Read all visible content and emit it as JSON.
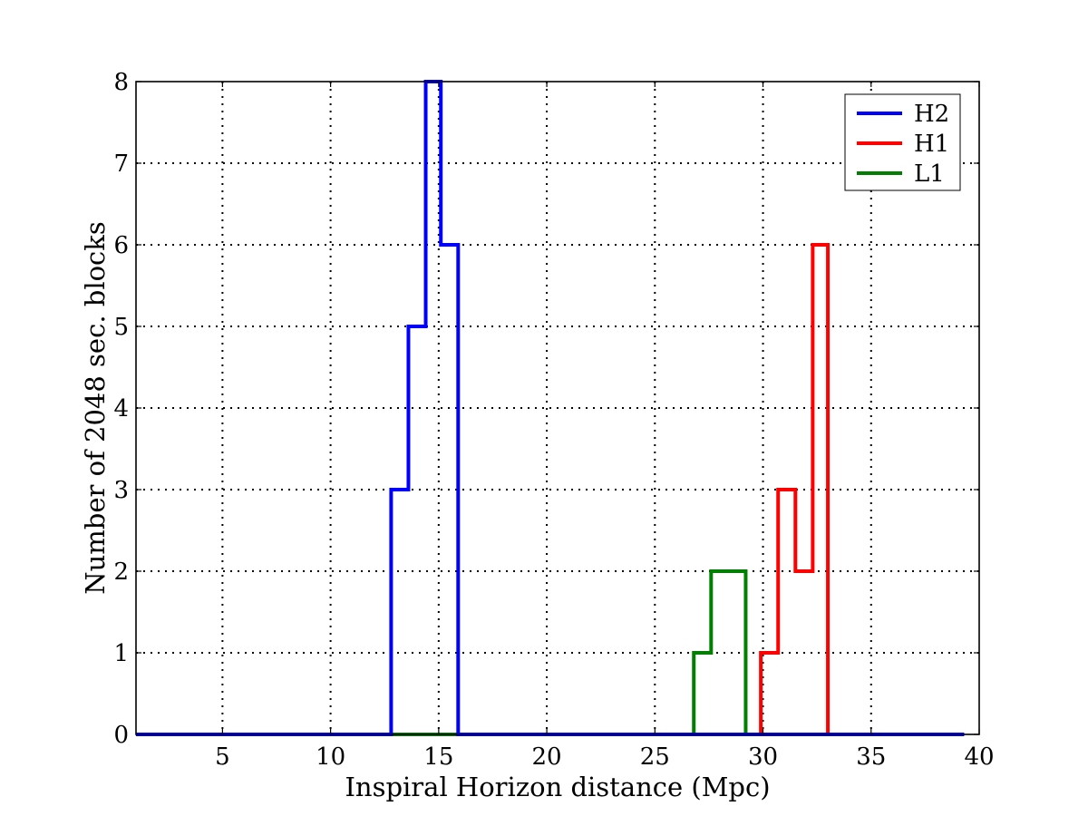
{
  "chart_data": {
    "type": "histogram-step",
    "title": "",
    "xlabel": "Inspiral Horizon distance (Mpc)",
    "ylabel": "Number of 2048 sec. blocks",
    "xlim": [
      1,
      40
    ],
    "ylim": [
      0,
      8
    ],
    "xticks": [
      5,
      10,
      15,
      20,
      25,
      30,
      35,
      40
    ],
    "yticks": [
      0,
      1,
      2,
      3,
      4,
      5,
      6,
      7,
      8
    ],
    "grid": true,
    "grid_style": "dotted",
    "legend_position": "top-right",
    "series": [
      {
        "name": "H2",
        "color": "#0000ff",
        "steps": [
          {
            "x0": 1.0,
            "x1": 12.8,
            "y": 0
          },
          {
            "x0": 12.8,
            "x1": 13.6,
            "y": 3
          },
          {
            "x0": 13.6,
            "x1": 14.4,
            "y": 5
          },
          {
            "x0": 14.4,
            "x1": 15.1,
            "y": 8
          },
          {
            "x0": 15.1,
            "x1": 15.9,
            "y": 6
          },
          {
            "x0": 15.9,
            "x1": 39.3,
            "y": 0
          }
        ]
      },
      {
        "name": "H1",
        "color": "#ff0000",
        "steps": [
          {
            "x0": 26.8,
            "x1": 29.9,
            "y": 0
          },
          {
            "x0": 29.9,
            "x1": 30.7,
            "y": 1
          },
          {
            "x0": 30.7,
            "x1": 31.5,
            "y": 3
          },
          {
            "x0": 31.5,
            "x1": 32.3,
            "y": 2
          },
          {
            "x0": 32.3,
            "x1": 33.0,
            "y": 6
          },
          {
            "x0": 33.0,
            "x1": 39.3,
            "y": 0
          }
        ]
      },
      {
        "name": "L1",
        "color": "#007f00",
        "steps": [
          {
            "x0": 1.0,
            "x1": 26.8,
            "y": 0
          },
          {
            "x0": 26.8,
            "x1": 27.6,
            "y": 1
          },
          {
            "x0": 27.6,
            "x1": 29.2,
            "y": 2
          },
          {
            "x0": 29.2,
            "x1": 39.3,
            "y": 0
          }
        ]
      }
    ]
  }
}
